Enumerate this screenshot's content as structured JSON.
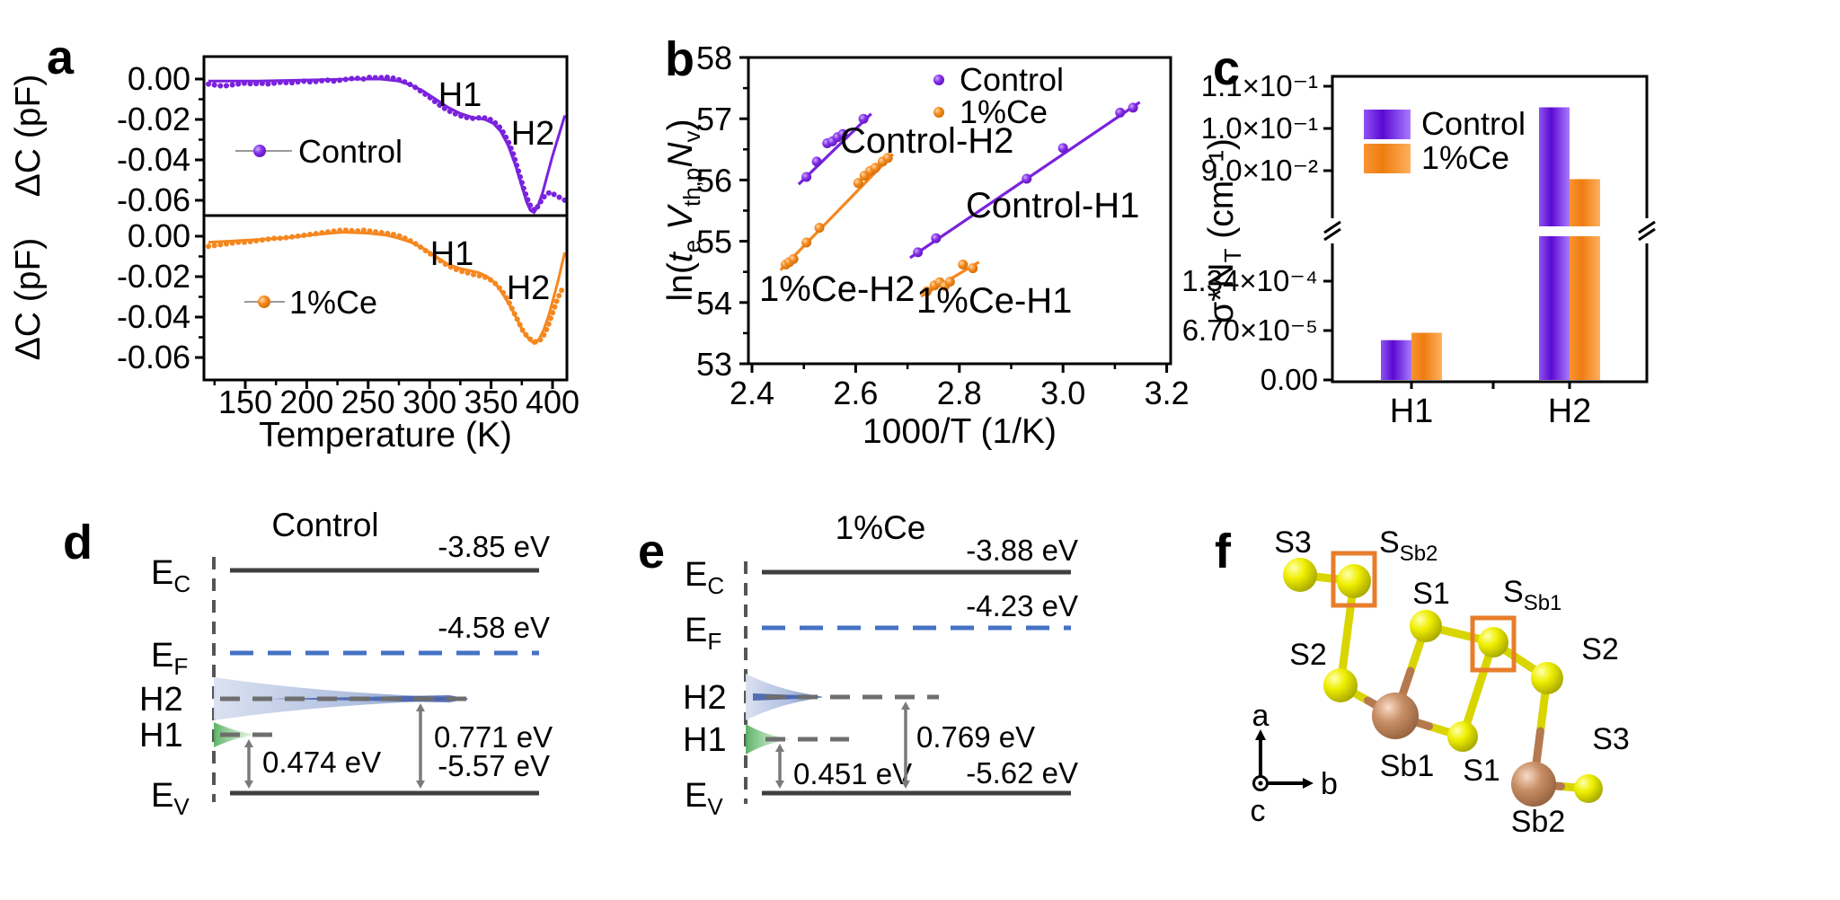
{
  "figure": {
    "panel_letters": [
      "a",
      "b",
      "c",
      "d",
      "e",
      "f"
    ],
    "colors": {
      "control": "#7A22DD",
      "ce": "#F5871F",
      "fermi_blue": "#4472C4",
      "level_gray": "#6E6E6E",
      "box_orange": "#E87D2B"
    }
  },
  "chart_data": [
    {
      "id": "a",
      "type": "line",
      "xlabel": "Temperature (K)",
      "ylabel": "ΔC (pF)",
      "xlim": [
        116,
        412
      ],
      "xticks": [
        150,
        200,
        250,
        300,
        350,
        400
      ],
      "yticks": [
        "0.00",
        "-0.02",
        "-0.04",
        "-0.06"
      ],
      "ylim_top": [
        0.011,
        -0.068
      ],
      "ylim_bottom": [
        0.01,
        -0.071
      ],
      "subplots": [
        {
          "legend": "Control",
          "color": "#7A22DD",
          "annotations": [
            "H1",
            "H2"
          ],
          "measured": [
            [
              120,
              -0.0025
            ],
            [
              126,
              -0.003
            ],
            [
              132,
              -0.0035
            ],
            [
              138,
              -0.003
            ],
            [
              144,
              -0.0025
            ],
            [
              150,
              -0.002
            ],
            [
              156,
              -0.0025
            ],
            [
              162,
              -0.002
            ],
            [
              168,
              -0.0025
            ],
            [
              174,
              -0.002
            ],
            [
              180,
              -0.0015
            ],
            [
              186,
              -0.002
            ],
            [
              192,
              -0.0015
            ],
            [
              198,
              -0.001
            ],
            [
              204,
              -0.0015
            ],
            [
              210,
              -0.001
            ],
            [
              216,
              -0.0005
            ],
            [
              222,
              -0.001
            ],
            [
              228,
              -0.0005
            ],
            [
              234,
              0
            ],
            [
              240,
              0.0005
            ],
            [
              246,
              0
            ],
            [
              252,
              0.001
            ],
            [
              258,
              0.0005
            ],
            [
              264,
              0.001
            ],
            [
              270,
              0.0005
            ],
            [
              276,
              -0.0005
            ],
            [
              282,
              -0.002
            ],
            [
              288,
              -0.004
            ],
            [
              294,
              -0.0065
            ],
            [
              300,
              -0.009
            ],
            [
              306,
              -0.012
            ],
            [
              312,
              -0.0145
            ],
            [
              318,
              -0.0165
            ],
            [
              324,
              -0.018
            ],
            [
              330,
              -0.019
            ],
            [
              336,
              -0.0195
            ],
            [
              342,
              -0.019
            ],
            [
              348,
              -0.0195
            ],
            [
              352,
              -0.021
            ],
            [
              356,
              -0.023
            ],
            [
              360,
              -0.0265
            ],
            [
              364,
              -0.031
            ],
            [
              368,
              -0.037
            ],
            [
              371,
              -0.043
            ],
            [
              374,
              -0.049
            ],
            [
              377,
              -0.055
            ],
            [
              380,
              -0.06
            ],
            [
              383,
              -0.064
            ],
            [
              386,
              -0.065
            ],
            [
              389,
              -0.062
            ],
            [
              392,
              -0.059
            ],
            [
              395,
              -0.057
            ],
            [
              398,
              -0.056
            ],
            [
              401,
              -0.057
            ],
            [
              404,
              -0.058
            ],
            [
              407,
              -0.059
            ],
            [
              410,
              -0.06
            ]
          ],
          "fit": [
            [
              120,
              -0.001
            ],
            [
              160,
              -0.001
            ],
            [
              200,
              -0.0005
            ],
            [
              240,
              0
            ],
            [
              260,
              0
            ],
            [
              275,
              -0.001
            ],
            [
              285,
              -0.003
            ],
            [
              295,
              -0.006
            ],
            [
              305,
              -0.01
            ],
            [
              315,
              -0.014
            ],
            [
              325,
              -0.017
            ],
            [
              335,
              -0.019
            ],
            [
              345,
              -0.02
            ],
            [
              352,
              -0.022
            ],
            [
              358,
              -0.026
            ],
            [
              364,
              -0.033
            ],
            [
              370,
              -0.043
            ],
            [
              375,
              -0.053
            ],
            [
              379,
              -0.061
            ],
            [
              382,
              -0.065
            ],
            [
              385,
              -0.066
            ],
            [
              388,
              -0.063
            ],
            [
              392,
              -0.056
            ],
            [
              396,
              -0.047
            ],
            [
              400,
              -0.038
            ],
            [
              404,
              -0.03
            ],
            [
              407,
              -0.024
            ],
            [
              410,
              -0.018
            ]
          ]
        },
        {
          "legend": "1%Ce",
          "color": "#F5871F",
          "annotations": [
            "H1",
            "H2"
          ],
          "measured": [
            [
              120,
              -0.005
            ],
            [
              126,
              -0.0045
            ],
            [
              132,
              -0.004
            ],
            [
              138,
              -0.0035
            ],
            [
              144,
              -0.003
            ],
            [
              150,
              -0.003
            ],
            [
              156,
              -0.0025
            ],
            [
              162,
              -0.002
            ],
            [
              168,
              -0.0015
            ],
            [
              174,
              -0.001
            ],
            [
              180,
              -0.001
            ],
            [
              186,
              -0.0005
            ],
            [
              192,
              0
            ],
            [
              198,
              0.0005
            ],
            [
              204,
              0.001
            ],
            [
              210,
              0.0015
            ],
            [
              216,
              0.002
            ],
            [
              222,
              0.0025
            ],
            [
              228,
              0.003
            ],
            [
              234,
              0.003
            ],
            [
              240,
              0.0025
            ],
            [
              246,
              0.003
            ],
            [
              252,
              0.0025
            ],
            [
              258,
              0.002
            ],
            [
              264,
              0.0015
            ],
            [
              270,
              0.001
            ],
            [
              276,
              0
            ],
            [
              282,
              -0.0015
            ],
            [
              288,
              -0.0035
            ],
            [
              294,
              -0.006
            ],
            [
              300,
              -0.0085
            ],
            [
              306,
              -0.011
            ],
            [
              312,
              -0.0135
            ],
            [
              318,
              -0.0155
            ],
            [
              324,
              -0.017
            ],
            [
              330,
              -0.018
            ],
            [
              336,
              -0.019
            ],
            [
              340,
              -0.0195
            ],
            [
              344,
              -0.02
            ],
            [
              348,
              -0.021
            ],
            [
              352,
              -0.0225
            ],
            [
              356,
              -0.025
            ],
            [
              360,
              -0.028
            ],
            [
              364,
              -0.032
            ],
            [
              368,
              -0.037
            ],
            [
              372,
              -0.042
            ],
            [
              376,
              -0.047
            ],
            [
              380,
              -0.05
            ],
            [
              384,
              -0.052
            ],
            [
              388,
              -0.0525
            ],
            [
              392,
              -0.05
            ],
            [
              396,
              -0.045
            ],
            [
              400,
              -0.038
            ],
            [
              404,
              -0.031
            ],
            [
              407,
              -0.027
            ],
            [
              410,
              -0.025
            ]
          ],
          "fit": [
            [
              120,
              -0.003
            ],
            [
              150,
              -0.002
            ],
            [
              180,
              -0.001
            ],
            [
              210,
              0.001
            ],
            [
              230,
              0.002
            ],
            [
              250,
              0.0015
            ],
            [
              265,
              0.0005
            ],
            [
              275,
              -0.001
            ],
            [
              285,
              -0.003
            ],
            [
              295,
              -0.006
            ],
            [
              305,
              -0.01
            ],
            [
              315,
              -0.014
            ],
            [
              325,
              -0.016
            ],
            [
              333,
              -0.017
            ],
            [
              340,
              -0.018
            ],
            [
              347,
              -0.02
            ],
            [
              353,
              -0.023
            ],
            [
              359,
              -0.028
            ],
            [
              365,
              -0.034
            ],
            [
              371,
              -0.041
            ],
            [
              376,
              -0.047
            ],
            [
              381,
              -0.051
            ],
            [
              385,
              -0.053
            ],
            [
              389,
              -0.051
            ],
            [
              393,
              -0.046
            ],
            [
              397,
              -0.039
            ],
            [
              401,
              -0.03
            ],
            [
              405,
              -0.021
            ],
            [
              408,
              -0.013
            ],
            [
              410,
              -0.008
            ]
          ]
        }
      ]
    },
    {
      "id": "b",
      "type": "scatter",
      "xlabel": "1000/T (1/K)",
      "ylabel_parts": {
        "prefix": "ln(",
        "t": "t",
        "t_sub": "e",
        "v": " V",
        "v_sub": "th,p",
        "n": "N",
        "n_sub": "v",
        "suffix": ")"
      },
      "xlim": [
        2.4,
        3.21
      ],
      "ylim": [
        53,
        58
      ],
      "xticks": [
        "2.4",
        "2.6",
        "2.8",
        "3.0",
        "3.2"
      ],
      "yticks": [
        "53",
        "54",
        "55",
        "56",
        "57",
        "58"
      ],
      "legend": [
        {
          "label": "Control",
          "color": "#7A22DD"
        },
        {
          "label": "1%Ce",
          "color": "#F5871F"
        }
      ],
      "series": [
        {
          "name": "Control-H2",
          "color": "#7A22DD",
          "points": [
            [
              2.505,
              56.05
            ],
            [
              2.525,
              56.3
            ],
            [
              2.545,
              56.6
            ],
            [
              2.555,
              56.63
            ],
            [
              2.565,
              56.7
            ],
            [
              2.575,
              56.75
            ],
            [
              2.615,
              57.0
            ]
          ],
          "fit": [
            [
              2.49,
              55.93
            ],
            [
              2.63,
              57.08
            ]
          ]
        },
        {
          "name": "1%Ce-H2",
          "color": "#F5871F",
          "points": [
            [
              2.465,
              54.62
            ],
            [
              2.472,
              54.66
            ],
            [
              2.48,
              54.71
            ],
            [
              2.505,
              54.98
            ],
            [
              2.53,
              55.22
            ],
            [
              2.605,
              55.95
            ],
            [
              2.617,
              56.07
            ],
            [
              2.628,
              56.15
            ],
            [
              2.638,
              56.2
            ],
            [
              2.652,
              56.3
            ],
            [
              2.662,
              56.36
            ]
          ],
          "fit": [
            [
              2.455,
              54.53
            ],
            [
              2.672,
              56.42
            ]
          ]
        },
        {
          "name": "Control-H1",
          "color": "#7A22DD",
          "points": [
            [
              2.72,
              54.82
            ],
            [
              2.755,
              55.05
            ],
            [
              2.93,
              56.02
            ],
            [
              3.0,
              56.52
            ],
            [
              3.11,
              57.1
            ],
            [
              3.135,
              57.18
            ]
          ],
          "fit": [
            [
              2.705,
              54.73
            ],
            [
              3.148,
              57.27
            ]
          ]
        },
        {
          "name": "1%Ce-H1",
          "color": "#F5871F",
          "points": [
            [
              2.737,
              54.18
            ],
            [
              2.752,
              54.28
            ],
            [
              2.762,
              54.33
            ],
            [
              2.772,
              54.27
            ],
            [
              2.782,
              54.34
            ],
            [
              2.807,
              54.62
            ],
            [
              2.826,
              54.56
            ]
          ],
          "fit": [
            [
              2.726,
              54.1
            ],
            [
              2.838,
              54.66
            ]
          ]
        }
      ]
    },
    {
      "id": "c",
      "type": "bar",
      "ylabel_parts": {
        "base": "σ*N",
        "sub": "T",
        "units": " (cm⁻¹)"
      },
      "categories": [
        "H1",
        "H2"
      ],
      "series": [
        {
          "name": "Control",
          "values": [
            5.4e-05,
            0.105
          ]
        },
        {
          "name": "1%Ce",
          "values": [
            6.4e-05,
            0.088
          ]
        }
      ],
      "yticks_lower": [
        "0.00",
        "6.70×10⁻⁵",
        "1.34×10⁻⁴"
      ],
      "yticks_upper": [
        "9.0×10⁻²",
        "1.0×10⁻¹",
        "1.1×10⁻¹"
      ],
      "axis_break": true
    }
  ],
  "band_diagrams": [
    {
      "id": "d",
      "title": "Control",
      "levels": {
        "ec": {
          "sym": "E",
          "sub": "C",
          "value": "-3.85 eV"
        },
        "ef": {
          "sym": "E",
          "sub": "F",
          "value": "-4.58 eV"
        },
        "h2": {
          "sym": "H2",
          "gap": "0.771 eV"
        },
        "h1": {
          "sym": "H1",
          "gap": "0.474 eV"
        },
        "ev": {
          "sym": "E",
          "sub": "V",
          "value": "-5.57 eV"
        }
      }
    },
    {
      "id": "e",
      "title": "1%Ce",
      "levels": {
        "ec": {
          "sym": "E",
          "sub": "C",
          "value": "-3.88 eV"
        },
        "ef": {
          "sym": "E",
          "sub": "F",
          "value": "-4.23 eV"
        },
        "h2": {
          "sym": "H2",
          "gap": "0.769 eV"
        },
        "h1": {
          "sym": "H1",
          "gap": "0.451 eV"
        },
        "ev": {
          "sym": "E",
          "sub": "V",
          "value": "-5.62 eV"
        }
      }
    }
  ],
  "structure": {
    "id": "f",
    "atom_labels": {
      "s3_tl": "S3",
      "ssb2": {
        "base": "S",
        "sub": "Sb2"
      },
      "s1_top": "S1",
      "ssb1": {
        "base": "S",
        "sub": "Sb1"
      },
      "s2_left": "S2",
      "s2_right": "S2",
      "sb1": "Sb1",
      "s1_bottom": "S1",
      "s3_right": "S3",
      "sb2": "Sb2"
    },
    "axes": {
      "a": "a",
      "b": "b",
      "c": "c"
    },
    "colors": {
      "sulfur": "#E8E800",
      "antimony": "#C5855F",
      "highlight_box": "#E87D2B"
    }
  }
}
